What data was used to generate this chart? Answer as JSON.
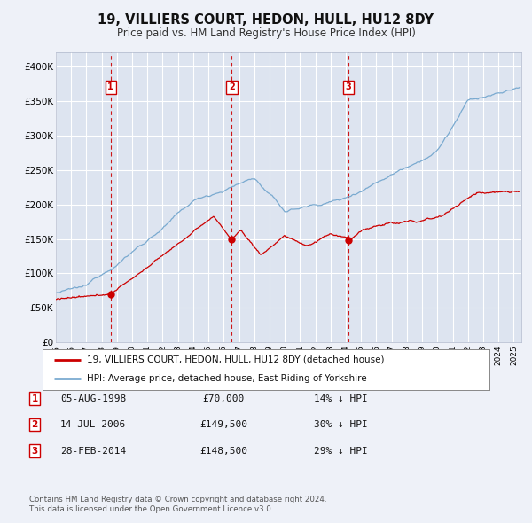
{
  "title": "19, VILLIERS COURT, HEDON, HULL, HU12 8DY",
  "subtitle": "Price paid vs. HM Land Registry's House Price Index (HPI)",
  "bg_color": "#eef1f8",
  "plot_bg_color": "#dde4f0",
  "grid_color": "#ffffff",
  "ylim": [
    0,
    420000
  ],
  "yticks": [
    0,
    50000,
    100000,
    150000,
    200000,
    250000,
    300000,
    350000,
    400000
  ],
  "ytick_labels": [
    "£0",
    "£50K",
    "£100K",
    "£150K",
    "£200K",
    "£250K",
    "£300K",
    "£350K",
    "£400K"
  ],
  "xlim_start": 1995.0,
  "xlim_end": 2025.5,
  "sale_dates": [
    1998.58,
    2006.53,
    2014.16
  ],
  "sale_prices": [
    70000,
    149500,
    148500
  ],
  "sale_labels": [
    "1",
    "2",
    "3"
  ],
  "vline_dates": [
    1998.58,
    2006.53,
    2014.16
  ],
  "legend_property": "19, VILLIERS COURT, HEDON, HULL, HU12 8DY (detached house)",
  "legend_hpi": "HPI: Average price, detached house, East Riding of Yorkshire",
  "table_rows": [
    [
      "1",
      "05-AUG-1998",
      "£70,000",
      "14% ↓ HPI"
    ],
    [
      "2",
      "14-JUL-2006",
      "£149,500",
      "30% ↓ HPI"
    ],
    [
      "3",
      "28-FEB-2014",
      "£148,500",
      "29% ↓ HPI"
    ]
  ],
  "footer1": "Contains HM Land Registry data © Crown copyright and database right 2024.",
  "footer2": "This data is licensed under the Open Government Licence v3.0.",
  "property_color": "#cc0000",
  "hpi_color": "#7aaad0",
  "vline_color": "#cc0000",
  "dot_color": "#cc0000"
}
